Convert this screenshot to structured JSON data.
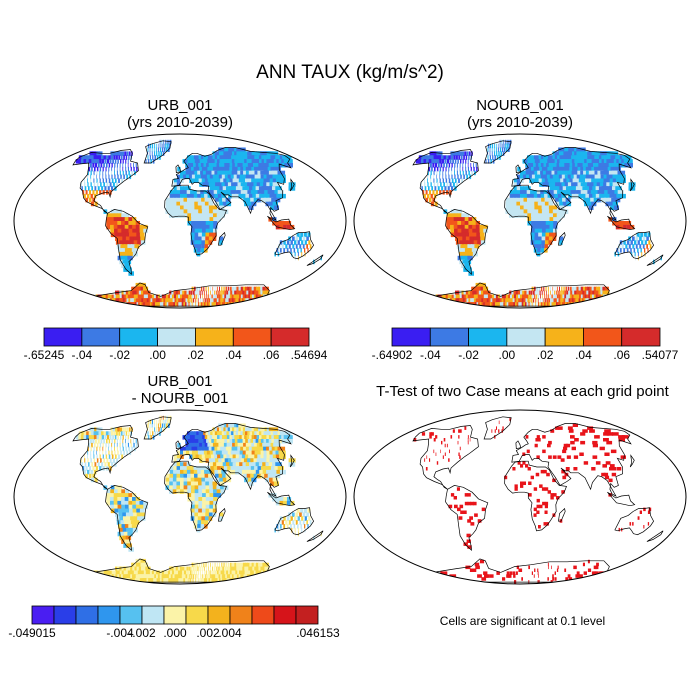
{
  "title": "ANN TAUX (kg/m/s^2)",
  "panels": [
    {
      "id": "urb",
      "title_line1": "URB_001",
      "title_line2": "(yrs 2010-2039)",
      "type": "field"
    },
    {
      "id": "nourb",
      "title_line1": "NOURB_001",
      "title_line2": "(yrs 2010-2039)",
      "type": "field"
    },
    {
      "id": "diff",
      "title_line1": "URB_001",
      "title_line2": "- NOURB_001",
      "type": "difference"
    },
    {
      "id": "ttest",
      "title_line1": "T-Test of two Case means at each grid point",
      "title_line2": "",
      "type": "significance"
    }
  ],
  "colorbars": [
    {
      "id": "urb",
      "labels": [
        "-.65245",
        "-.04",
        "-.02",
        ".00",
        ".02",
        ".04",
        ".06",
        ".54694"
      ],
      "colors": [
        "#3a1ef2",
        "#3d7ae4",
        "#1bb6ef",
        "#c4e6f2",
        "#f6b21a",
        "#f2561a",
        "#d52b2b"
      ]
    },
    {
      "id": "nourb",
      "labels": [
        "-.64902",
        "-.04",
        "-.02",
        ".00",
        ".02",
        ".04",
        ".06",
        ".54077"
      ],
      "colors": [
        "#3a1ef2",
        "#3d7ae4",
        "#1bb6ef",
        "#c4e6f2",
        "#f6b21a",
        "#f2561a",
        "#d52b2b"
      ]
    },
    {
      "id": "diff",
      "labels": [
        "-.049015",
        "-.004",
        "-.002",
        ".000",
        ".002",
        ".004",
        ".046153"
      ],
      "colors": [
        "#4a1ef2",
        "#2a3ee8",
        "#2f6fe6",
        "#2f96ee",
        "#56c1f0",
        "#bfe6f4",
        "#fbf3a8",
        "#f7d94a",
        "#f3b21d",
        "#f0821a",
        "#ee4a1a",
        "#d6141a",
        "#c32020"
      ]
    }
  ],
  "significance_note": "Cells are significant at 0.1 level",
  "legend_colors": {
    "significant": "#e8141a",
    "coast": "#000000"
  }
}
